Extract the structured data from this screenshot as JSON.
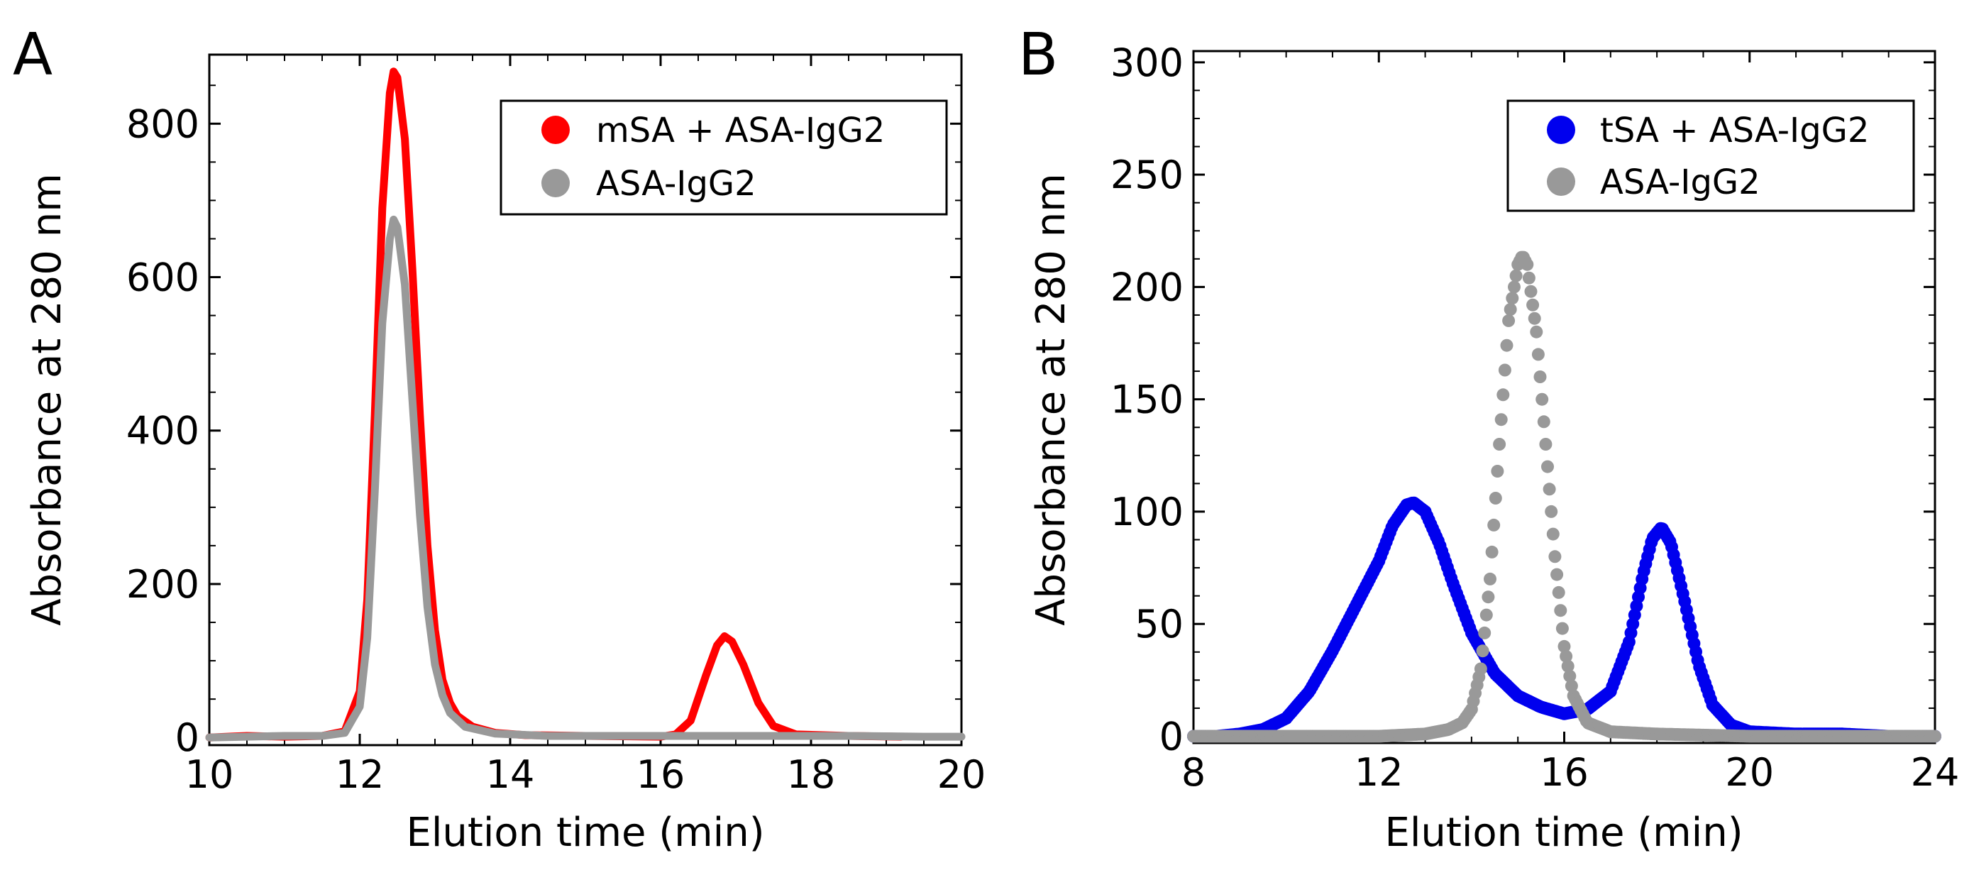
{
  "figure": {
    "panels": [
      "A",
      "B"
    ]
  },
  "chart_data": [
    {
      "panel": "A",
      "type": "line",
      "xlabel": "Elution time (min)",
      "ylabel": "Absorbance at 280 nm",
      "xlim": [
        10,
        20
      ],
      "ylim": [
        -10,
        890
      ],
      "xticks": [
        10,
        12,
        14,
        16,
        18,
        20
      ],
      "xtick_labels": [
        "10",
        "12",
        "14",
        "16",
        "18",
        "20"
      ],
      "yticks": [
        0,
        200,
        400,
        600,
        800
      ],
      "ytick_labels": [
        "0",
        "200",
        "400",
        "600",
        "800"
      ],
      "legend": {
        "placement": "top-right",
        "entries": [
          "mSA + ASA-IgG2",
          "ASA-IgG2"
        ]
      },
      "series": [
        {
          "name": "mSA + ASA-IgG2",
          "color": "#ff0000",
          "points": [
            [
              10.0,
              0
            ],
            [
              10.5,
              2
            ],
            [
              11.0,
              1
            ],
            [
              11.5,
              2
            ],
            [
              11.8,
              8
            ],
            [
              12.0,
              60
            ],
            [
              12.1,
              180
            ],
            [
              12.2,
              420
            ],
            [
              12.3,
              690
            ],
            [
              12.4,
              840
            ],
            [
              12.45,
              868
            ],
            [
              12.5,
              860
            ],
            [
              12.6,
              780
            ],
            [
              12.7,
              610
            ],
            [
              12.8,
              420
            ],
            [
              12.9,
              250
            ],
            [
              13.0,
              140
            ],
            [
              13.1,
              75
            ],
            [
              13.2,
              45
            ],
            [
              13.3,
              28
            ],
            [
              13.5,
              14
            ],
            [
              13.8,
              6
            ],
            [
              14.2,
              3
            ],
            [
              15.0,
              2
            ],
            [
              16.0,
              1
            ],
            [
              16.2,
              4
            ],
            [
              16.4,
              22
            ],
            [
              16.6,
              80
            ],
            [
              16.75,
              120
            ],
            [
              16.85,
              132
            ],
            [
              16.95,
              125
            ],
            [
              17.1,
              95
            ],
            [
              17.3,
              45
            ],
            [
              17.5,
              15
            ],
            [
              17.8,
              4
            ],
            [
              18.5,
              2
            ],
            [
              19.2,
              1
            ]
          ]
        },
        {
          "name": "ASA-IgG2",
          "color": "#999999",
          "points": [
            [
              10.0,
              0
            ],
            [
              10.5,
              1
            ],
            [
              11.0,
              2
            ],
            [
              11.5,
              2
            ],
            [
              11.8,
              6
            ],
            [
              12.0,
              40
            ],
            [
              12.1,
              130
            ],
            [
              12.2,
              320
            ],
            [
              12.3,
              540
            ],
            [
              12.4,
              650
            ],
            [
              12.45,
              675
            ],
            [
              12.5,
              665
            ],
            [
              12.6,
              590
            ],
            [
              12.7,
              440
            ],
            [
              12.8,
              290
            ],
            [
              12.9,
              170
            ],
            [
              13.0,
              95
            ],
            [
              13.1,
              55
            ],
            [
              13.2,
              32
            ],
            [
              13.4,
              14
            ],
            [
              13.8,
              5
            ],
            [
              14.5,
              2
            ],
            [
              15.5,
              2
            ],
            [
              16.5,
              2
            ],
            [
              17.5,
              2
            ],
            [
              18.5,
              2
            ],
            [
              19.5,
              1
            ],
            [
              20.0,
              1
            ]
          ]
        }
      ]
    },
    {
      "panel": "B",
      "type": "scatter",
      "xlabel": "Elution time (min)",
      "ylabel": "Absorbance at 280 nm",
      "xlim": [
        8,
        24
      ],
      "ylim": [
        -3,
        305
      ],
      "xticks": [
        8,
        12,
        16,
        20,
        24
      ],
      "xtick_labels": [
        "8",
        "12",
        "16",
        "20",
        "24"
      ],
      "yticks": [
        0,
        50,
        100,
        150,
        200,
        250,
        300
      ],
      "ytick_labels": [
        "0",
        "50",
        "100",
        "150",
        "200",
        "250",
        "300"
      ],
      "legend": {
        "placement": "top-right",
        "entries": [
          "tSA + ASA-IgG2",
          "ASA-IgG2"
        ]
      },
      "series": [
        {
          "name": "tSA + ASA-IgG2",
          "color": "#0000ee",
          "points": [
            [
              8.0,
              0
            ],
            [
              8.5,
              0
            ],
            [
              9.0,
              1
            ],
            [
              9.5,
              3
            ],
            [
              10.0,
              8
            ],
            [
              10.5,
              20
            ],
            [
              11.0,
              38
            ],
            [
              11.5,
              58
            ],
            [
              12.0,
              78
            ],
            [
              12.3,
              94
            ],
            [
              12.6,
              103
            ],
            [
              12.75,
              104
            ],
            [
              13.0,
              100
            ],
            [
              13.3,
              86
            ],
            [
              13.6,
              68
            ],
            [
              14.0,
              46
            ],
            [
              14.5,
              28
            ],
            [
              15.0,
              18
            ],
            [
              15.5,
              13
            ],
            [
              16.0,
              10
            ],
            [
              16.5,
              12
            ],
            [
              17.0,
              20
            ],
            [
              17.4,
              42
            ],
            [
              17.7,
              72
            ],
            [
              17.9,
              88
            ],
            [
              18.1,
              93
            ],
            [
              18.3,
              86
            ],
            [
              18.6,
              60
            ],
            [
              18.9,
              32
            ],
            [
              19.2,
              14
            ],
            [
              19.6,
              5
            ],
            [
              20.0,
              2
            ],
            [
              21.0,
              1
            ],
            [
              22.0,
              1
            ],
            [
              23.0,
              0
            ],
            [
              24.0,
              0
            ]
          ]
        },
        {
          "name": "ASA-IgG2",
          "color": "#999999",
          "points": [
            [
              8.0,
              0
            ],
            [
              10.0,
              0
            ],
            [
              12.0,
              0
            ],
            [
              13.0,
              1
            ],
            [
              13.5,
              3
            ],
            [
              13.8,
              6
            ],
            [
              14.0,
              12
            ],
            [
              14.2,
              30
            ],
            [
              14.4,
              70
            ],
            [
              14.6,
              130
            ],
            [
              14.8,
              185
            ],
            [
              15.0,
              210
            ],
            [
              15.1,
              214
            ],
            [
              15.2,
              210
            ],
            [
              15.4,
              180
            ],
            [
              15.6,
              130
            ],
            [
              15.8,
              80
            ],
            [
              16.0,
              40
            ],
            [
              16.2,
              18
            ],
            [
              16.5,
              6
            ],
            [
              17.0,
              2
            ],
            [
              18.0,
              1
            ],
            [
              20.0,
              0
            ],
            [
              24.0,
              0
            ]
          ]
        }
      ]
    }
  ]
}
